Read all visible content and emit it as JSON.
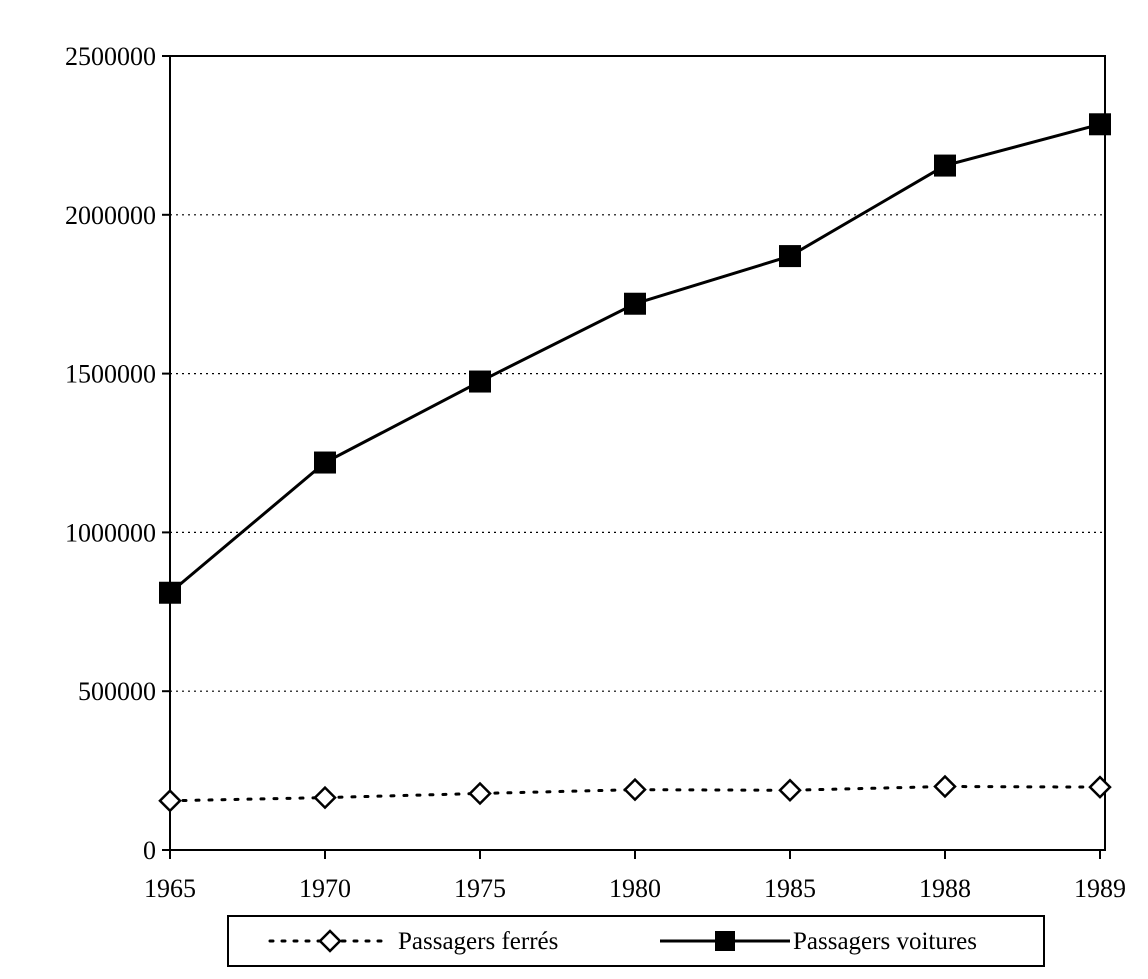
{
  "chart_data": {
    "type": "line",
    "x": [
      "1965",
      "1970",
      "1975",
      "1980",
      "1985",
      "1988",
      "1989"
    ],
    "ylim": [
      0,
      2500000
    ],
    "yticks": [
      "0",
      "500000",
      "1000000",
      "1500000",
      "2000000",
      "2500000"
    ],
    "grid": "horizontal dotted",
    "legend_position": "bottom",
    "series": [
      {
        "name": "Passagers ferrés",
        "marker": "open-diamond",
        "line": "dotted",
        "values": [
          155000,
          165000,
          178000,
          190000,
          188000,
          200000,
          198000
        ]
      },
      {
        "name": "Passagers voitures",
        "marker": "filled-square",
        "line": "solid",
        "values": [
          810000,
          1220000,
          1475000,
          1720000,
          1870000,
          2155000,
          2285000
        ]
      }
    ],
    "colors": {
      "line": "#000000",
      "grid": "#000000",
      "background": "#ffffff"
    }
  }
}
